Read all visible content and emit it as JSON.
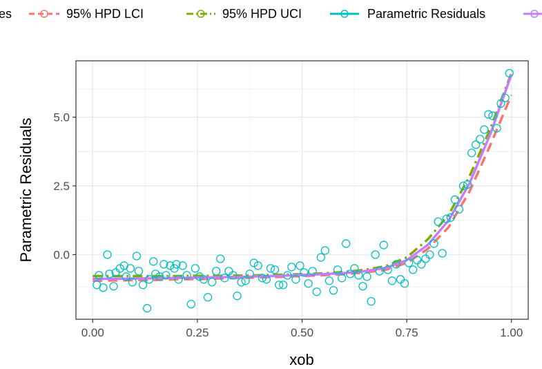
{
  "chart_data": {
    "type": "line",
    "xlabel": "xob",
    "ylabel": "Parametric Residuals",
    "xlim": [
      -0.04,
      1.04
    ],
    "ylim": [
      -2.35,
      7.05
    ],
    "x_ticks": [
      "0.00",
      "0.25",
      "0.50",
      "0.75",
      "1.00"
    ],
    "x_tick_values": [
      0,
      0.25,
      0.5,
      0.75,
      1.0
    ],
    "y_ticks": [
      "0.0",
      "2.5",
      "5.0"
    ],
    "y_tick_values": [
      0,
      2.5,
      5.0
    ],
    "grid": true,
    "legend_position": "top",
    "legend": {
      "prefix": "es",
      "entries": [
        "95% HPD LCI",
        "95% HPD UCI",
        "Parametric Residuals",
        ""
      ]
    },
    "colors": {
      "lci": "#F8766D",
      "uci": "#7CAE00",
      "residuals": "#00BFC4",
      "smooth": "#C77CFF",
      "grid": "#ebebeb",
      "panel_border": "#333333"
    },
    "series": [
      {
        "name": "95% HPD LCI",
        "style": "dashed",
        "x": [
          0.0,
          0.05,
          0.1,
          0.15,
          0.2,
          0.25,
          0.3,
          0.35,
          0.4,
          0.45,
          0.5,
          0.55,
          0.6,
          0.65,
          0.7,
          0.75,
          0.8,
          0.85,
          0.9,
          0.95,
          1.0
        ],
        "y": [
          -0.95,
          -0.94,
          -0.93,
          -0.92,
          -0.9,
          -0.89,
          -0.87,
          -0.85,
          -0.83,
          -0.81,
          -0.78,
          -0.75,
          -0.71,
          -0.65,
          -0.55,
          -0.3,
          0.2,
          1.0,
          2.3,
          4.0,
          5.8
        ]
      },
      {
        "name": "95% HPD UCI",
        "style": "dotdash",
        "x": [
          0.0,
          0.05,
          0.1,
          0.15,
          0.2,
          0.25,
          0.3,
          0.35,
          0.4,
          0.45,
          0.5,
          0.55,
          0.6,
          0.65,
          0.7,
          0.75,
          0.8,
          0.85,
          0.9,
          0.95,
          1.0
        ],
        "y": [
          -0.78,
          -0.78,
          -0.78,
          -0.78,
          -0.78,
          -0.77,
          -0.77,
          -0.76,
          -0.75,
          -0.73,
          -0.71,
          -0.68,
          -0.63,
          -0.55,
          -0.42,
          -0.1,
          0.55,
          1.45,
          2.85,
          4.6,
          6.6
        ]
      },
      {
        "name": "",
        "style": "solid",
        "x": [
          0.0,
          0.05,
          0.1,
          0.15,
          0.2,
          0.25,
          0.3,
          0.35,
          0.4,
          0.45,
          0.5,
          0.55,
          0.6,
          0.65,
          0.7,
          0.75,
          0.8,
          0.85,
          0.9,
          0.95,
          1.0
        ],
        "y": [
          -0.88,
          -0.88,
          -0.87,
          -0.86,
          -0.85,
          -0.84,
          -0.82,
          -0.81,
          -0.79,
          -0.77,
          -0.74,
          -0.71,
          -0.67,
          -0.6,
          -0.48,
          -0.2,
          0.35,
          1.25,
          2.6,
          4.4,
          6.55
        ]
      },
      {
        "name": "Parametric Residuals",
        "style": "points",
        "x": [
          0.01,
          0.015,
          0.025,
          0.035,
          0.04,
          0.05,
          0.055,
          0.065,
          0.075,
          0.08,
          0.09,
          0.095,
          0.105,
          0.11,
          0.12,
          0.13,
          0.135,
          0.145,
          0.15,
          0.16,
          0.17,
          0.175,
          0.185,
          0.195,
          0.2,
          0.205,
          0.215,
          0.225,
          0.235,
          0.245,
          0.255,
          0.265,
          0.275,
          0.285,
          0.295,
          0.305,
          0.315,
          0.325,
          0.335,
          0.345,
          0.355,
          0.365,
          0.375,
          0.385,
          0.395,
          0.405,
          0.415,
          0.425,
          0.435,
          0.445,
          0.455,
          0.465,
          0.475,
          0.485,
          0.495,
          0.505,
          0.515,
          0.525,
          0.535,
          0.545,
          0.555,
          0.565,
          0.575,
          0.585,
          0.595,
          0.605,
          0.615,
          0.625,
          0.635,
          0.645,
          0.655,
          0.665,
          0.675,
          0.685,
          0.695,
          0.705,
          0.715,
          0.725,
          0.735,
          0.745,
          0.755,
          0.765,
          0.775,
          0.785,
          0.795,
          0.805,
          0.815,
          0.825,
          0.835,
          0.845,
          0.855,
          0.865,
          0.875,
          0.885,
          0.895,
          0.905,
          0.915,
          0.925,
          0.935,
          0.945,
          0.955,
          0.965,
          0.975,
          0.985,
          0.995
        ],
        "y": [
          -1.1,
          -0.75,
          -1.2,
          0.0,
          -0.7,
          -1.15,
          -0.65,
          -0.5,
          -0.4,
          -0.8,
          -0.5,
          -1.0,
          -0.05,
          -0.6,
          -1.1,
          -1.95,
          -0.9,
          -0.25,
          -0.7,
          -0.8,
          -0.35,
          -0.75,
          -0.4,
          -0.5,
          -0.35,
          -0.9,
          -0.4,
          -0.75,
          -1.8,
          -0.5,
          -0.8,
          -0.9,
          -1.55,
          -1.0,
          -0.6,
          -0.15,
          -0.85,
          -0.6,
          -0.75,
          -1.5,
          -1.0,
          -0.95,
          -0.7,
          -0.3,
          -0.4,
          -0.85,
          -0.9,
          -0.5,
          -0.55,
          -1.1,
          -1.1,
          -0.75,
          -0.45,
          -0.9,
          -0.4,
          -0.65,
          -1.05,
          -0.6,
          -1.35,
          -0.1,
          0.15,
          -0.95,
          -1.3,
          -0.55,
          -0.85,
          0.4,
          -0.7,
          -0.5,
          -0.75,
          -1.15,
          -0.8,
          -1.7,
          0.0,
          -0.6,
          0.35,
          -0.55,
          -0.95,
          -0.35,
          -0.9,
          -1.05,
          -0.3,
          -0.55,
          -0.2,
          -0.35,
          -0.15,
          0.0,
          0.4,
          1.2,
          0.05,
          1.3,
          1.35,
          2.0,
          1.65,
          2.5,
          2.55,
          3.7,
          4.0,
          4.2,
          4.55,
          5.1,
          5.05,
          4.6,
          5.5,
          5.7,
          6.6
        ]
      }
    ]
  }
}
